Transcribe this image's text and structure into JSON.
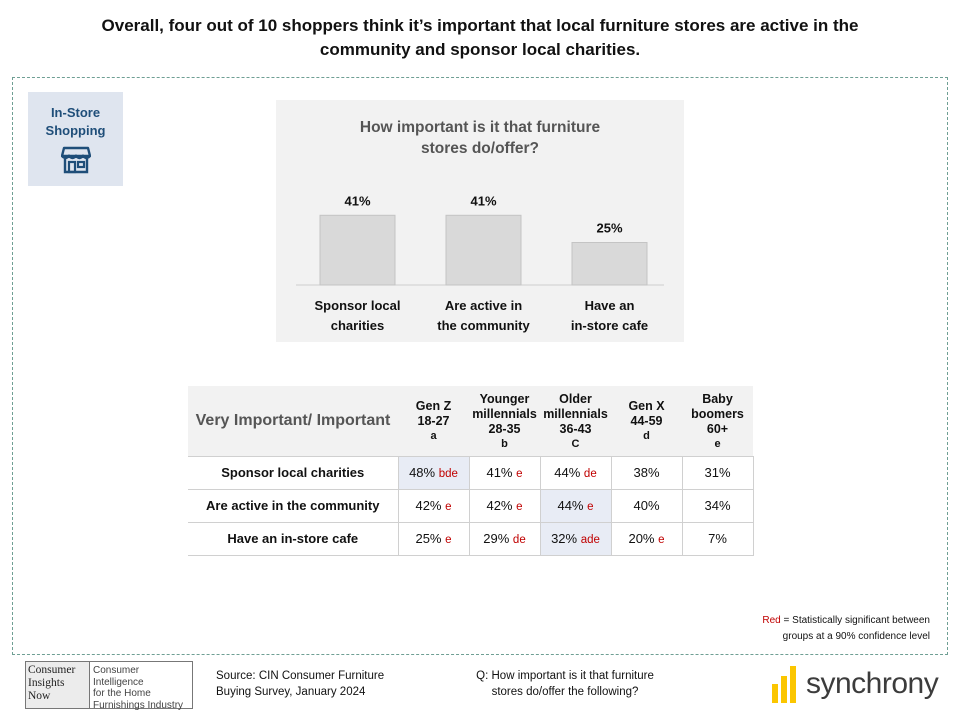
{
  "headline": "Overall, four out of 10 shoppers think it’s important that local furniture stores are active in the community and sponsor local charities.",
  "badge": {
    "label": "In-Store\nShopping",
    "icon": "storefront-icon",
    "color": "#1f4e79"
  },
  "chart_data": {
    "type": "bar",
    "title": "How important is it that furniture stores do/offer?",
    "categories": [
      "Sponsor local charities",
      "Are active in the community",
      "Have an in-store cafe"
    ],
    "values": [
      41,
      41,
      25
    ],
    "value_labels": [
      "41%",
      "41%",
      "25%"
    ],
    "ylim": [
      0,
      100
    ],
    "grid": false,
    "bar_color": "#d9d9d9"
  },
  "table": {
    "row_header": "Very Important/ Important",
    "columns": [
      {
        "name": "Gen Z",
        "ages": "18-27",
        "letter": "a"
      },
      {
        "name": "Younger millennials",
        "ages": "28-35",
        "letter": "b"
      },
      {
        "name": "Older millennials",
        "ages": "36-43",
        "letter": "C"
      },
      {
        "name": "Gen X",
        "ages": "44-59",
        "letter": "d"
      },
      {
        "name": "Baby boomers",
        "ages": "60+",
        "letter": "e"
      }
    ],
    "rows": [
      {
        "label": "Sponsor local charities",
        "cells": [
          {
            "value": "48%",
            "sig": "bde",
            "highlight": true
          },
          {
            "value": "41%",
            "sig": "e"
          },
          {
            "value": "44%",
            "sig": "de"
          },
          {
            "value": "38%",
            "sig": ""
          },
          {
            "value": "31%",
            "sig": ""
          }
        ]
      },
      {
        "label": "Are active in the community",
        "cells": [
          {
            "value": "42%",
            "sig": "e"
          },
          {
            "value": "42%",
            "sig": "e"
          },
          {
            "value": "44%",
            "sig": "e",
            "highlight": true
          },
          {
            "value": "40%",
            "sig": ""
          },
          {
            "value": "34%",
            "sig": ""
          }
        ]
      },
      {
        "label": "Have an in-store cafe",
        "cells": [
          {
            "value": "25%",
            "sig": "e"
          },
          {
            "value": "29%",
            "sig": "de"
          },
          {
            "value": "32%",
            "sig": "ade",
            "highlight": true
          },
          {
            "value": "20%",
            "sig": "e"
          },
          {
            "value": "7%",
            "sig": ""
          }
        ]
      }
    ]
  },
  "note": {
    "red_word": "Red",
    "rest_line1": " = Statistically significant between",
    "line2": "groups at a 90% confidence level",
    "red_color": "#c00000"
  },
  "cin_logo": {
    "left_lines": [
      "Consumer",
      "Insights",
      "Now"
    ],
    "right_lines": [
      "Consumer Intelligence",
      "for the Home",
      "Furnishings Industry"
    ]
  },
  "source": {
    "line1": "Source: CIN Consumer Furniture",
    "line2": "Buying Survey, January 2024"
  },
  "question": {
    "line1": "Q: How important is it that furniture",
    "line2": "stores do/offer the following?"
  },
  "brand": {
    "name": "synchrony",
    "accent": "#fbc600"
  }
}
